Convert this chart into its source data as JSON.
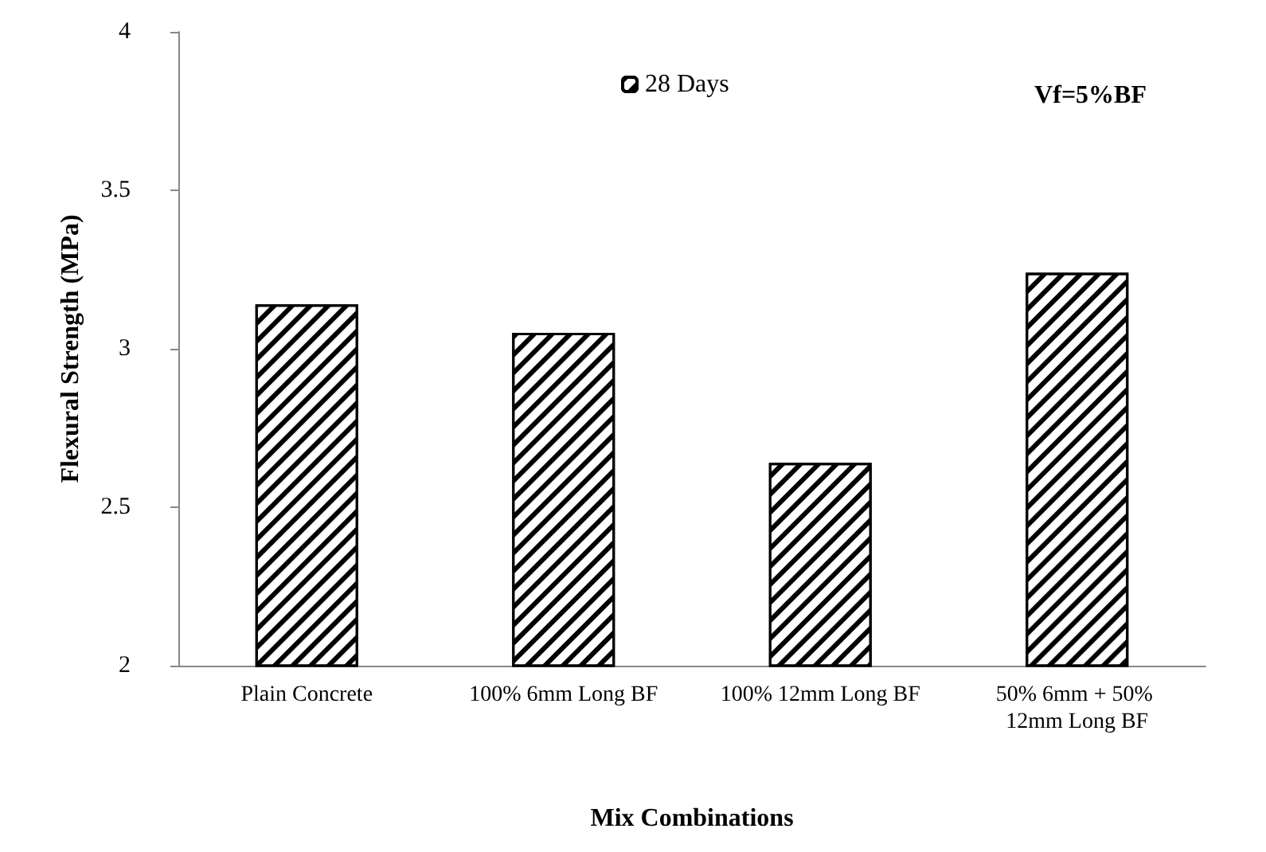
{
  "chart_data": {
    "type": "bar",
    "xlabel": "Mix Combinations",
    "ylabel": "Flexural Strength (MPa)",
    "categories": [
      "Plain Concrete",
      "100% 6mm Long BF",
      "100% 12mm Long BF",
      "50% 6mm + 50% 12mm Long BF"
    ],
    "series": [
      {
        "name": "28 Days",
        "color": "#000000",
        "values": [
          3.14,
          3.05,
          2.64,
          3.24
        ]
      }
    ],
    "ylim": [
      2,
      4
    ],
    "yticks": [
      2,
      2.5,
      3,
      3.5,
      4
    ],
    "grid": false,
    "legend": "top",
    "annotations": [
      "Vf=5%BF"
    ]
  }
}
